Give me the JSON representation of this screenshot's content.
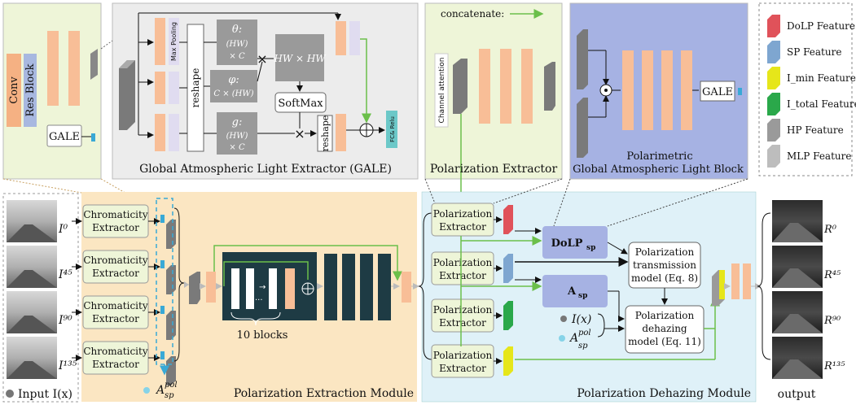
{
  "gale_panel": {
    "conv": "Conv",
    "res_block": "Res Block",
    "gale": "GALE",
    "max_pooling": "Max Pooling",
    "reshape": "reshape",
    "theta": "θ:",
    "theta_dim1": "(HW)",
    "theta_dim2": "× C",
    "phi": "φ:",
    "phi_dim": "C × (HW)",
    "g": "g:",
    "g_dim1": "(HW)",
    "g_dim2": "× C",
    "hw_matrix": "HW × HW",
    "softmax": "SoftMax",
    "reshape2": "reshape",
    "fc_relu": "FC& Relu",
    "caption": "Global Atmospheric Light Extractor (GALE)"
  },
  "pe_panel": {
    "concatenate": "concatenate:",
    "channel_attention": "Channel attention",
    "caption": "Polarization Extractor"
  },
  "pgal_panel": {
    "gale": "GALE",
    "caption1": "Polarimetric",
    "caption2": "Global Atmospheric Light Block"
  },
  "legend": {
    "items": [
      {
        "label": "DoLP Feature",
        "color": "#e0525a"
      },
      {
        "label": "SP Feature",
        "color": "#7ea6d0"
      },
      {
        "label": "I_min Feature",
        "color": "#e6e61a"
      },
      {
        "label": "I_total Feature",
        "color": "#2aa84a"
      },
      {
        "label": "HP Feature",
        "color": "#9a9a9a"
      },
      {
        "label": "MLP Feature",
        "color": "#bdbdbd"
      }
    ]
  },
  "inputs": {
    "labels": [
      "I⁰",
      "I⁴⁵",
      "I⁹⁰",
      "I¹³⁵"
    ],
    "legend": "Input I(x)"
  },
  "chromaticity": [
    "Chromaticity Extractor",
    "Chromaticity Extractor",
    "Chromaticity Extractor",
    "Chromaticity Extractor"
  ],
  "pem": {
    "a_sp_pol": "A",
    "a_sub": "sp",
    "a_sup": "pol",
    "blocks": "10 blocks",
    "caption": "Polarization Extraction Module"
  },
  "pdm": {
    "extractors": [
      "Polarization Extractor",
      "Polarization Extractor",
      "Polarization Extractor",
      "Polarization Extractor"
    ],
    "dolp": "DoLP",
    "dolp_sub": "sp",
    "asp": "A",
    "asp_sub": "sp",
    "transmission": [
      "Polarization",
      "transmission",
      "model (Eq. 8)"
    ],
    "dehazing": [
      "Polarization",
      "dehazing",
      "model (Eq. 11)"
    ],
    "ix": "I(x)",
    "caption": "Polarization Dehazing Module"
  },
  "outputs": {
    "labels": [
      "R⁰",
      "R⁴⁵",
      "R⁹⁰",
      "R¹³⁵"
    ],
    "caption": "output"
  }
}
